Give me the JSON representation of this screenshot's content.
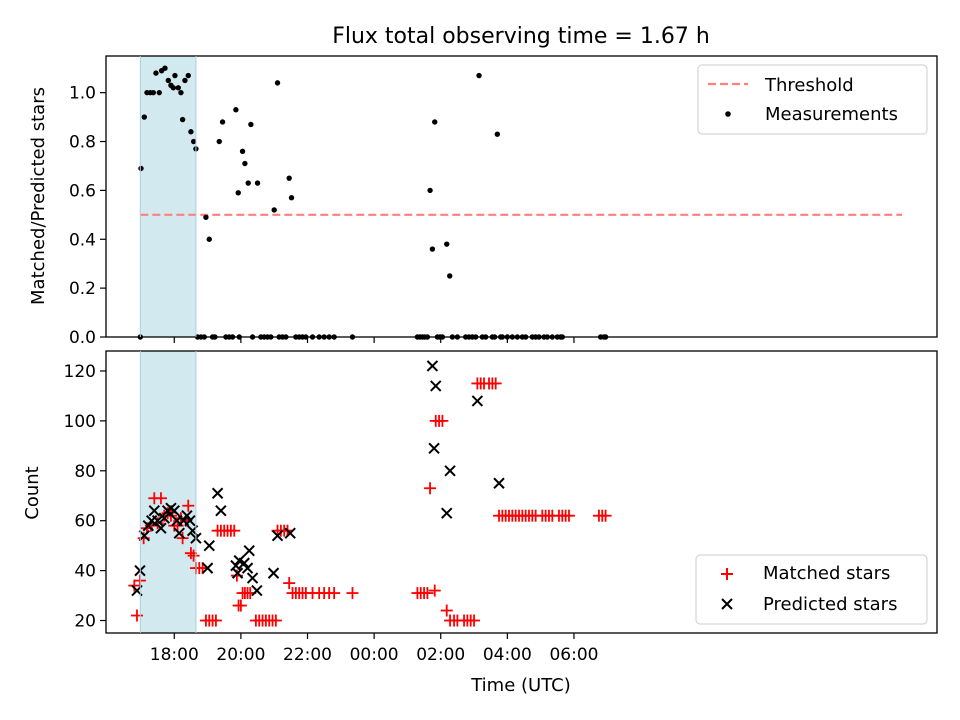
{
  "title": "Flux total observing time = 1.67 h",
  "chart_data": [
    {
      "type": "scatter",
      "title": "Flux total observing time = 1.67 h",
      "xlabel": "",
      "ylabel": "Matched/Predicted stars",
      "xlim_hours": [
        15.95,
        40.9
      ],
      "ylim": [
        0,
        1.15
      ],
      "yticks": [
        0.0,
        0.2,
        0.4,
        0.6,
        0.8,
        1.0
      ],
      "ytick_labels": [
        "0.0",
        "0.2",
        "0.4",
        "0.6",
        "0.8",
        "1.0"
      ],
      "shaded_interval_hours": [
        16.98,
        18.65
      ],
      "shaded_color": "#d3e9f0",
      "legend_position": "upper right",
      "threshold": {
        "name": "Threshold",
        "value": 0.5,
        "x_range_hours": [
          16.98,
          39.85
        ],
        "color": "#ff7f7f",
        "style": "dashed"
      },
      "series": [
        {
          "name": "Measurements",
          "color": "#000000",
          "marker": "dot",
          "points": [
            [
              16.98,
              0.0
            ],
            [
              17.0,
              0.69
            ],
            [
              17.1,
              0.9
            ],
            [
              17.18,
              1.0
            ],
            [
              17.28,
              1.0
            ],
            [
              17.37,
              1.0
            ],
            [
              17.45,
              1.08
            ],
            [
              17.55,
              1.0
            ],
            [
              17.62,
              1.09
            ],
            [
              17.72,
              1.1
            ],
            [
              17.82,
              1.05
            ],
            [
              17.9,
              1.03
            ],
            [
              17.97,
              1.02
            ],
            [
              18.02,
              1.07
            ],
            [
              18.12,
              1.02
            ],
            [
              18.2,
              1.0
            ],
            [
              18.25,
              0.89
            ],
            [
              18.32,
              1.05
            ],
            [
              18.42,
              1.07
            ],
            [
              18.5,
              0.84
            ],
            [
              18.58,
              0.8
            ],
            [
              18.65,
              0.77
            ],
            [
              18.7,
              0.0
            ],
            [
              18.8,
              0.0
            ],
            [
              18.9,
              0.0
            ],
            [
              18.95,
              0.49
            ],
            [
              19.05,
              0.4
            ],
            [
              19.15,
              0.0
            ],
            [
              19.22,
              0.0
            ],
            [
              19.35,
              0.8
            ],
            [
              19.45,
              0.88
            ],
            [
              19.55,
              0.0
            ],
            [
              19.65,
              0.0
            ],
            [
              19.75,
              0.0
            ],
            [
              19.85,
              0.93
            ],
            [
              19.92,
              0.59
            ],
            [
              19.95,
              0.0
            ],
            [
              20.05,
              0.76
            ],
            [
              20.12,
              0.71
            ],
            [
              20.22,
              0.63
            ],
            [
              20.3,
              0.87
            ],
            [
              20.35,
              0.0
            ],
            [
              20.5,
              0.63
            ],
            [
              20.6,
              0.0
            ],
            [
              20.7,
              0.0
            ],
            [
              20.8,
              0.0
            ],
            [
              20.9,
              0.0
            ],
            [
              21.0,
              0.52
            ],
            [
              21.1,
              1.04
            ],
            [
              21.15,
              0.0
            ],
            [
              21.25,
              0.0
            ],
            [
              21.35,
              0.0
            ],
            [
              21.45,
              0.65
            ],
            [
              21.52,
              0.57
            ],
            [
              21.65,
              0.0
            ],
            [
              21.75,
              0.0
            ],
            [
              21.85,
              0.0
            ],
            [
              21.95,
              0.0
            ],
            [
              22.15,
              0.0
            ],
            [
              22.35,
              0.0
            ],
            [
              22.5,
              0.0
            ],
            [
              22.65,
              0.0
            ],
            [
              22.8,
              0.0
            ],
            [
              23.35,
              0.0
            ],
            [
              25.3,
              0.0
            ],
            [
              25.38,
              0.0
            ],
            [
              25.45,
              0.0
            ],
            [
              25.52,
              0.0
            ],
            [
              25.6,
              0.0
            ],
            [
              25.68,
              0.6
            ],
            [
              25.75,
              0.36
            ],
            [
              25.82,
              0.88
            ],
            [
              25.9,
              0.0
            ],
            [
              25.98,
              0.0
            ],
            [
              26.05,
              0.0
            ],
            [
              26.18,
              0.38
            ],
            [
              26.27,
              0.25
            ],
            [
              26.35,
              0.0
            ],
            [
              26.5,
              0.0
            ],
            [
              26.75,
              0.0
            ],
            [
              26.85,
              0.0
            ],
            [
              26.95,
              0.0
            ],
            [
              27.05,
              0.0
            ],
            [
              27.15,
              1.07
            ],
            [
              27.25,
              0.0
            ],
            [
              27.35,
              0.0
            ],
            [
              27.55,
              0.0
            ],
            [
              27.62,
              0.0
            ],
            [
              27.7,
              0.83
            ],
            [
              27.8,
              0.0
            ],
            [
              27.85,
              0.0
            ],
            [
              28.0,
              0.0
            ],
            [
              28.15,
              0.0
            ],
            [
              28.3,
              0.0
            ],
            [
              28.45,
              0.0
            ],
            [
              28.55,
              0.0
            ],
            [
              28.75,
              0.0
            ],
            [
              28.85,
              0.0
            ],
            [
              28.95,
              0.0
            ],
            [
              29.1,
              0.0
            ],
            [
              29.2,
              0.0
            ],
            [
              29.35,
              0.0
            ],
            [
              29.5,
              0.0
            ],
            [
              29.6,
              0.0
            ],
            [
              29.65,
              0.0
            ],
            [
              30.8,
              0.0
            ],
            [
              30.9,
              0.0
            ],
            [
              30.95,
              0.0
            ]
          ]
        }
      ]
    },
    {
      "type": "scatter",
      "title": "",
      "xlabel": "Time (UTC)",
      "ylabel": "Count",
      "xlim_hours": [
        15.95,
        40.9
      ],
      "ylim": [
        15,
        128
      ],
      "yticks": [
        20,
        40,
        60,
        80,
        100,
        120
      ],
      "ytick_labels": [
        "20",
        "40",
        "60",
        "80",
        "100",
        "120"
      ],
      "xticks_hours": [
        18,
        20,
        22,
        24,
        26,
        28,
        30
      ],
      "xtick_labels": [
        "18:00",
        "20:00",
        "22:00",
        "00:00",
        "02:00",
        "04:00",
        "06:00"
      ],
      "shaded_interval_hours": [
        16.98,
        18.65
      ],
      "shaded_color": "#d3e9f0",
      "legend_position": "lower right",
      "series": [
        {
          "name": "Matched stars",
          "color": "#ff0000",
          "marker": "plus",
          "points": [
            [
              16.8,
              34
            ],
            [
              16.88,
              22
            ],
            [
              16.97,
              36
            ],
            [
              17.08,
              53
            ],
            [
              17.18,
              57
            ],
            [
              17.3,
              58
            ],
            [
              17.4,
              69
            ],
            [
              17.5,
              59
            ],
            [
              17.6,
              69
            ],
            [
              17.7,
              62
            ],
            [
              17.8,
              63
            ],
            [
              17.9,
              62
            ],
            [
              18.0,
              58
            ],
            [
              18.1,
              58
            ],
            [
              18.2,
              61
            ],
            [
              18.25,
              53
            ],
            [
              18.35,
              60
            ],
            [
              18.42,
              66
            ],
            [
              18.5,
              47
            ],
            [
              18.58,
              46
            ],
            [
              18.65,
              41
            ],
            [
              18.75,
              41
            ],
            [
              18.85,
              41
            ],
            [
              18.95,
              20
            ],
            [
              19.05,
              20
            ],
            [
              19.15,
              20
            ],
            [
              19.25,
              20
            ],
            [
              19.3,
              56
            ],
            [
              19.4,
              56
            ],
            [
              19.5,
              56
            ],
            [
              19.6,
              56
            ],
            [
              19.7,
              56
            ],
            [
              19.8,
              56
            ],
            [
              19.88,
              38
            ],
            [
              19.93,
              26
            ],
            [
              20.0,
              26
            ],
            [
              20.05,
              31
            ],
            [
              20.12,
              31
            ],
            [
              20.2,
              31
            ],
            [
              20.28,
              31
            ],
            [
              20.45,
              20
            ],
            [
              20.55,
              20
            ],
            [
              20.65,
              20
            ],
            [
              20.75,
              20
            ],
            [
              20.85,
              20
            ],
            [
              20.95,
              20
            ],
            [
              21.05,
              20
            ],
            [
              21.1,
              56
            ],
            [
              21.2,
              56
            ],
            [
              21.3,
              56
            ],
            [
              21.4,
              56
            ],
            [
              21.45,
              35
            ],
            [
              21.55,
              31
            ],
            [
              21.65,
              31
            ],
            [
              21.75,
              31
            ],
            [
              21.85,
              31
            ],
            [
              21.95,
              31
            ],
            [
              22.15,
              31
            ],
            [
              22.35,
              31
            ],
            [
              22.5,
              31
            ],
            [
              22.65,
              31
            ],
            [
              22.8,
              31
            ],
            [
              23.35,
              31
            ],
            [
              25.3,
              31
            ],
            [
              25.4,
              31
            ],
            [
              25.5,
              31
            ],
            [
              25.6,
              31
            ],
            [
              25.68,
              73
            ],
            [
              25.82,
              32
            ],
            [
              25.85,
              100
            ],
            [
              25.95,
              100
            ],
            [
              26.05,
              100
            ],
            [
              26.18,
              24
            ],
            [
              26.28,
              20
            ],
            [
              26.4,
              20
            ],
            [
              26.5,
              20
            ],
            [
              26.7,
              20
            ],
            [
              26.8,
              20
            ],
            [
              26.9,
              20
            ],
            [
              27.0,
              20
            ],
            [
              27.1,
              115
            ],
            [
              27.2,
              115
            ],
            [
              27.3,
              115
            ],
            [
              27.45,
              115
            ],
            [
              27.55,
              115
            ],
            [
              27.65,
              115
            ],
            [
              27.75,
              62
            ],
            [
              27.85,
              62
            ],
            [
              27.95,
              62
            ],
            [
              28.05,
              62
            ],
            [
              28.15,
              62
            ],
            [
              28.25,
              62
            ],
            [
              28.35,
              62
            ],
            [
              28.45,
              62
            ],
            [
              28.55,
              62
            ],
            [
              28.65,
              62
            ],
            [
              28.75,
              62
            ],
            [
              28.85,
              62
            ],
            [
              29.05,
              62
            ],
            [
              29.15,
              62
            ],
            [
              29.25,
              62
            ],
            [
              29.35,
              62
            ],
            [
              29.55,
              62
            ],
            [
              29.65,
              62
            ],
            [
              29.75,
              62
            ],
            [
              29.85,
              62
            ],
            [
              30.75,
              62
            ],
            [
              30.85,
              62
            ],
            [
              30.95,
              62
            ]
          ]
        },
        {
          "name": "Predicted stars",
          "color": "#000000",
          "marker": "x",
          "points": [
            [
              16.88,
              32
            ],
            [
              16.97,
              40
            ],
            [
              17.1,
              54
            ],
            [
              17.22,
              58
            ],
            [
              17.32,
              60
            ],
            [
              17.4,
              64
            ],
            [
              17.5,
              60
            ],
            [
              17.6,
              57
            ],
            [
              17.7,
              61
            ],
            [
              17.8,
              64
            ],
            [
              17.9,
              65
            ],
            [
              18.0,
              64
            ],
            [
              18.08,
              60
            ],
            [
              18.15,
              55
            ],
            [
              18.28,
              60
            ],
            [
              18.38,
              62
            ],
            [
              18.47,
              60
            ],
            [
              18.55,
              56
            ],
            [
              18.65,
              53
            ],
            [
              19.0,
              41
            ],
            [
              19.05,
              50
            ],
            [
              19.3,
              71
            ],
            [
              19.4,
              64
            ],
            [
              19.85,
              42
            ],
            [
              19.9,
              39
            ],
            [
              19.95,
              44
            ],
            [
              20.1,
              43
            ],
            [
              20.2,
              41
            ],
            [
              20.25,
              48
            ],
            [
              20.35,
              37
            ],
            [
              20.48,
              32
            ],
            [
              20.98,
              39
            ],
            [
              21.1,
              54
            ],
            [
              21.48,
              55
            ],
            [
              25.75,
              122
            ],
            [
              25.8,
              89
            ],
            [
              25.85,
              114
            ],
            [
              26.18,
              63
            ],
            [
              26.28,
              80
            ],
            [
              27.1,
              108
            ],
            [
              27.75,
              75
            ]
          ]
        }
      ]
    }
  ]
}
